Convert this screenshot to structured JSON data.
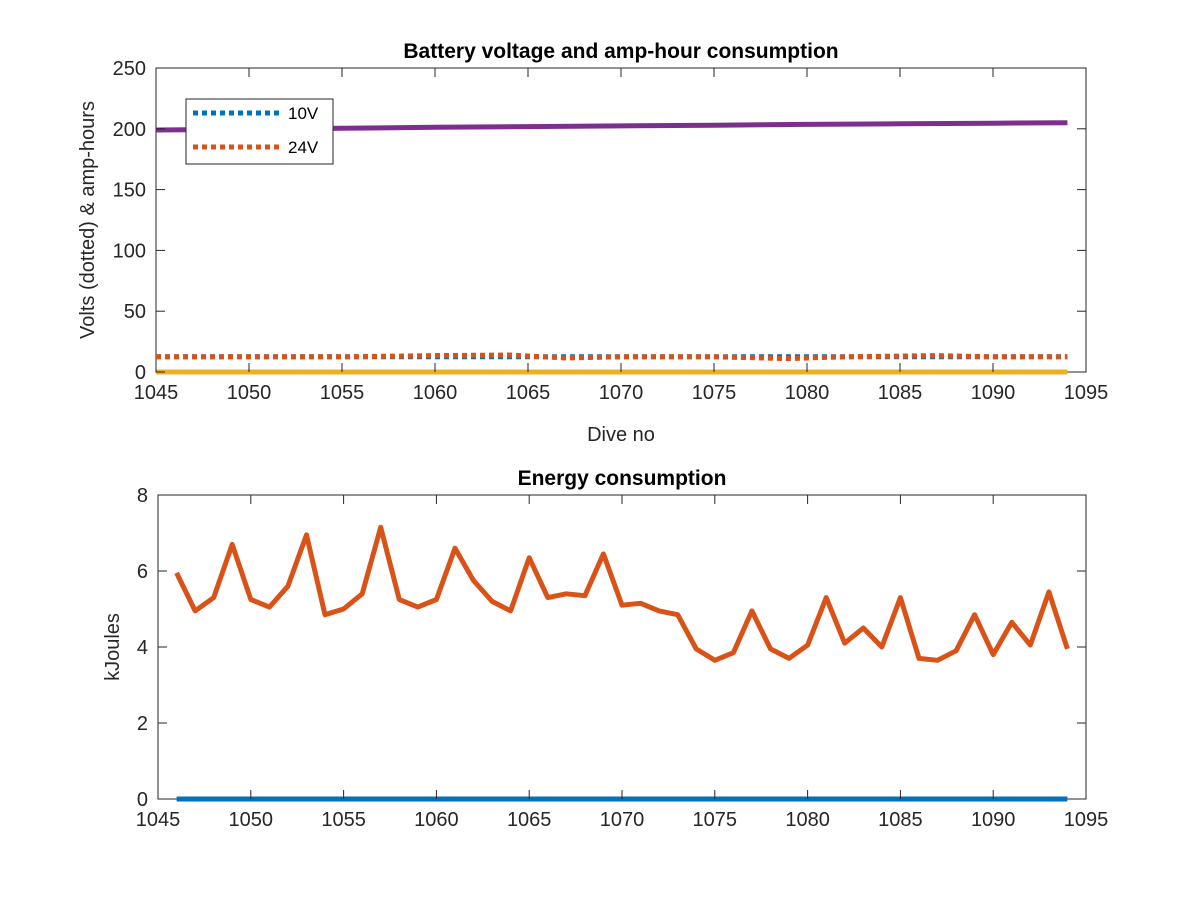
{
  "chart_data": [
    {
      "type": "line",
      "title": "Battery voltage and amp-hour consumption",
      "xlabel": "Dive no",
      "ylabel": "Volts (dotted) & amp-hours",
      "xlim": [
        1045,
        1095
      ],
      "ylim": [
        0,
        250
      ],
      "xticks": [
        1045,
        1050,
        1055,
        1060,
        1065,
        1070,
        1075,
        1080,
        1085,
        1090,
        1095
      ],
      "yticks": [
        0,
        50,
        100,
        150,
        200,
        250
      ],
      "grid": false,
      "legend": {
        "placement": "top-left",
        "entries": [
          "10V",
          "24V"
        ]
      },
      "series": [
        {
          "name": "10V",
          "style": "dotted",
          "color": "#0072BD",
          "x": [
            1045,
            1094
          ],
          "y": [
            12.5,
            12.5
          ]
        },
        {
          "name": "24V",
          "style": "dotted",
          "color": "#D95319",
          "x": [
            1045,
            1050,
            1055,
            1060,
            1064,
            1067,
            1070,
            1075,
            1079,
            1082,
            1087,
            1090,
            1094
          ],
          "y": [
            12.5,
            12.5,
            12.5,
            13.5,
            14,
            11.5,
            12.5,
            12.5,
            11,
            12.5,
            13.5,
            12.5,
            12.5
          ]
        },
        {
          "style": "solid",
          "color": "#7E2F8E",
          "x": [
            1045,
            1050,
            1055,
            1060,
            1065,
            1070,
            1075,
            1080,
            1085,
            1090,
            1094
          ],
          "y": [
            199,
            199.7,
            200.4,
            201.2,
            201.8,
            202.4,
            203,
            203.6,
            204.1,
            204.6,
            205
          ]
        },
        {
          "style": "solid",
          "color": "#EDB120",
          "x": [
            1045,
            1094
          ],
          "y": [
            0,
            0
          ]
        }
      ]
    },
    {
      "type": "line",
      "title": "Energy consumption",
      "xlabel": "",
      "ylabel": "kJoules",
      "xlim": [
        1045,
        1095
      ],
      "ylim": [
        0,
        8
      ],
      "xticks": [
        1045,
        1050,
        1055,
        1060,
        1065,
        1070,
        1075,
        1080,
        1085,
        1090,
        1095
      ],
      "yticks": [
        0,
        2,
        4,
        6,
        8
      ],
      "grid": false,
      "series": [
        {
          "style": "solid",
          "color": "#D95319",
          "x": [
            1046,
            1047,
            1048,
            1049,
            1050,
            1051,
            1052,
            1053,
            1054,
            1055,
            1056,
            1057,
            1058,
            1059,
            1060,
            1061,
            1062,
            1063,
            1064,
            1065,
            1066,
            1067,
            1068,
            1069,
            1070,
            1071,
            1072,
            1073,
            1074,
            1075,
            1076,
            1077,
            1078,
            1079,
            1080,
            1081,
            1082,
            1083,
            1084,
            1085,
            1086,
            1087,
            1088,
            1089,
            1090,
            1091,
            1092,
            1093,
            1094
          ],
          "y": [
            5.95,
            4.95,
            5.3,
            6.7,
            5.25,
            5.05,
            5.6,
            6.95,
            4.85,
            5.0,
            5.4,
            7.15,
            5.25,
            5.05,
            5.25,
            6.6,
            5.75,
            5.2,
            4.95,
            6.35,
            5.3,
            5.4,
            5.35,
            6.45,
            5.1,
            5.15,
            4.95,
            4.85,
            3.95,
            3.65,
            3.85,
            4.95,
            3.95,
            3.7,
            4.05,
            5.3,
            4.1,
            4.5,
            4.0,
            5.3,
            3.7,
            3.65,
            3.9,
            4.85,
            3.8,
            4.65,
            4.05,
            5.45,
            3.95
          ]
        },
        {
          "style": "solid",
          "color": "#0072BD",
          "x": [
            1046,
            1094
          ],
          "y": [
            0,
            0
          ]
        }
      ]
    }
  ]
}
